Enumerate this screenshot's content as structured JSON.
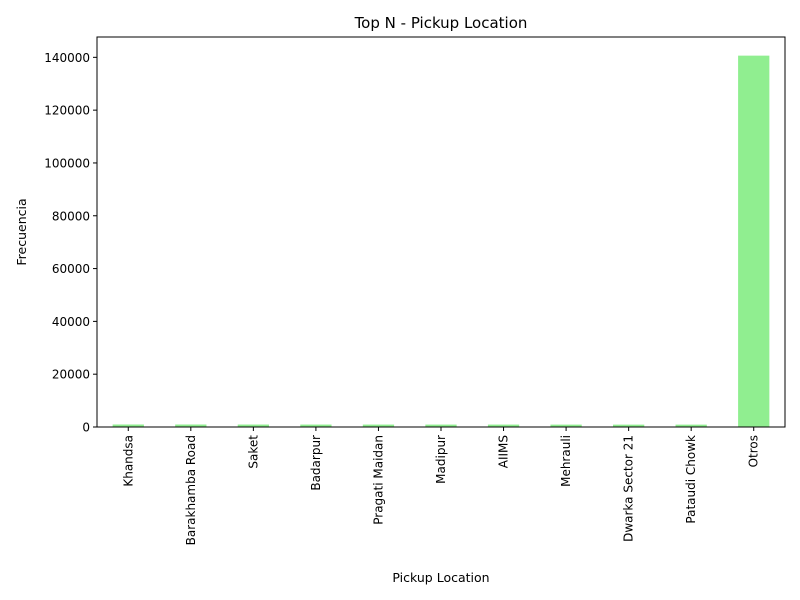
{
  "chart_data": {
    "type": "bar",
    "title": "Top N - Pickup Location",
    "xlabel": "Pickup Location",
    "ylabel": "Frecuencia",
    "categories": [
      "Khandsa",
      "Barakhamba Road",
      "Saket",
      "Badarpur",
      "Pragati Maidan",
      "Madipur",
      "AIIMS",
      "Mehrauli",
      "Dwarka Sector 21",
      "Pataudi Chowk",
      "Otros"
    ],
    "values": [
      949,
      946,
      931,
      921,
      920,
      917,
      914,
      904,
      898,
      898,
      140640
    ],
    "ylim": [
      0,
      147700
    ],
    "yticks": [
      0,
      20000,
      40000,
      60000,
      80000,
      100000,
      120000,
      140000
    ],
    "grid": false,
    "bar_color": "#90ee90"
  }
}
